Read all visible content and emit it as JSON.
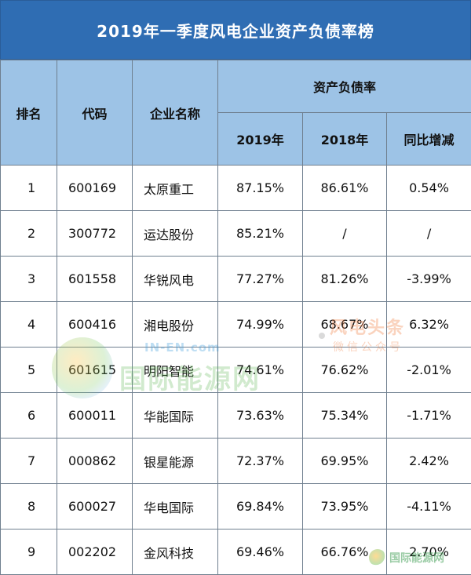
{
  "title": "2019年一季度风电企业资产负债率榜",
  "headers": {
    "rank": "排名",
    "code": "代码",
    "name": "企业名称",
    "group": "资产负债率",
    "y2019": "2019年",
    "y2018": "2018年",
    "yoy": "同比增减"
  },
  "rows": [
    {
      "rank": "1",
      "code": "600169",
      "name": "太原重工",
      "y2019": "87.15%",
      "y2018": "86.61%",
      "yoy": "0.54%"
    },
    {
      "rank": "2",
      "code": "300772",
      "name": "运达股份",
      "y2019": "85.21%",
      "y2018": "/",
      "yoy": "/"
    },
    {
      "rank": "3",
      "code": "601558",
      "name": "华锐风电",
      "y2019": "77.27%",
      "y2018": "81.26%",
      "yoy": "-3.99%"
    },
    {
      "rank": "4",
      "code": "600416",
      "name": "湘电股份",
      "y2019": "74.99%",
      "y2018": "68.67%",
      "yoy": "6.32%"
    },
    {
      "rank": "5",
      "code": "601615",
      "name": "明阳智能",
      "y2019": "74.61%",
      "y2018": "76.62%",
      "yoy": "-2.01%"
    },
    {
      "rank": "6",
      "code": "600011",
      "name": "华能国际",
      "y2019": "73.63%",
      "y2018": "75.34%",
      "yoy": "-1.71%"
    },
    {
      "rank": "7",
      "code": "000862",
      "name": "银星能源",
      "y2019": "72.37%",
      "y2018": "69.95%",
      "yoy": "2.42%"
    },
    {
      "rank": "8",
      "code": "600027",
      "name": "华电国际",
      "y2019": "69.84%",
      "y2018": "73.95%",
      "yoy": "-4.11%"
    },
    {
      "rank": "9",
      "code": "002202",
      "name": "金风科技",
      "y2019": "69.46%",
      "y2018": "66.76%",
      "yoy": "2.70%"
    }
  ],
  "watermarks": {
    "site_en": "IN-EN.com",
    "site_cn": "国际能源网",
    "headline_top": "风电头条",
    "headline_bottom": "微信公众号",
    "corner": "国际能源网"
  },
  "colors": {
    "title_bg": "#2f6db3",
    "header_bg": "#9dc3e6"
  }
}
